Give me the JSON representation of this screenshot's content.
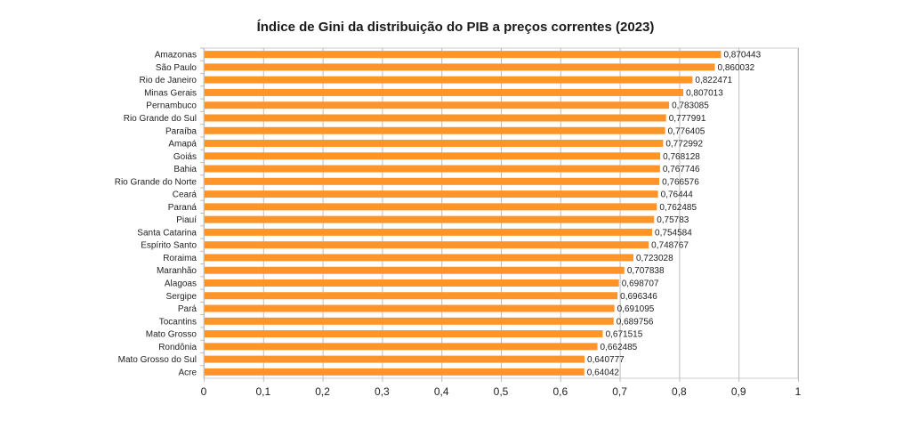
{
  "chart_data": {
    "type": "bar",
    "orientation": "horizontal",
    "title": "Índice de Gini da distribuição do PIB a preços correntes (2023)",
    "xlabel": "",
    "ylabel": "",
    "xlim": [
      0,
      1
    ],
    "grid": true,
    "bar_color": "#ff9529",
    "categories": [
      "Amazonas",
      "São Paulo",
      "Rio de Janeiro",
      "Minas Gerais",
      "Pernambuco",
      "Rio Grande do Sul",
      "Paraíba",
      "Amapá",
      "Goiás",
      "Bahia",
      "Rio Grande do Norte",
      "Ceará",
      "Paraná",
      "Piauí",
      "Santa Catarina",
      "Espírito Santo",
      "Roraima",
      "Maranhão",
      "Alagoas",
      "Sergipe",
      "Pará",
      "Tocantins",
      "Mato Grosso",
      "Rondônia",
      "Mato Grosso do Sul",
      "Acre"
    ],
    "values": [
      0.870443,
      0.860032,
      0.822471,
      0.807013,
      0.783085,
      0.777991,
      0.776405,
      0.772992,
      0.768128,
      0.767746,
      0.766576,
      0.76444,
      0.762485,
      0.75783,
      0.754584,
      0.748767,
      0.723028,
      0.707838,
      0.698707,
      0.696346,
      0.691095,
      0.689756,
      0.671515,
      0.662485,
      0.640777,
      0.64042
    ],
    "value_labels": [
      "0,870443",
      "0,860032",
      "0,822471",
      "0,807013",
      "0,783085",
      "0,777991",
      "0,776405",
      "0,772992",
      "0,768128",
      "0,767746",
      "0,766576",
      "0,76444",
      "0,762485",
      "0,75783",
      "0,754584",
      "0,748767",
      "0,723028",
      "0,707838",
      "0,698707",
      "0,696346",
      "0,691095",
      "0,689756",
      "0,671515",
      "0,662485",
      "0,640777",
      "0,64042"
    ],
    "x_ticks": [
      0,
      0.1,
      0.2,
      0.3,
      0.4,
      0.5,
      0.6,
      0.7,
      0.8,
      0.9,
      1
    ],
    "x_tick_labels": [
      "0",
      "0,1",
      "0,2",
      "0,3",
      "0,4",
      "0,5",
      "0,6",
      "0,7",
      "0,8",
      "0,9",
      "1"
    ]
  }
}
